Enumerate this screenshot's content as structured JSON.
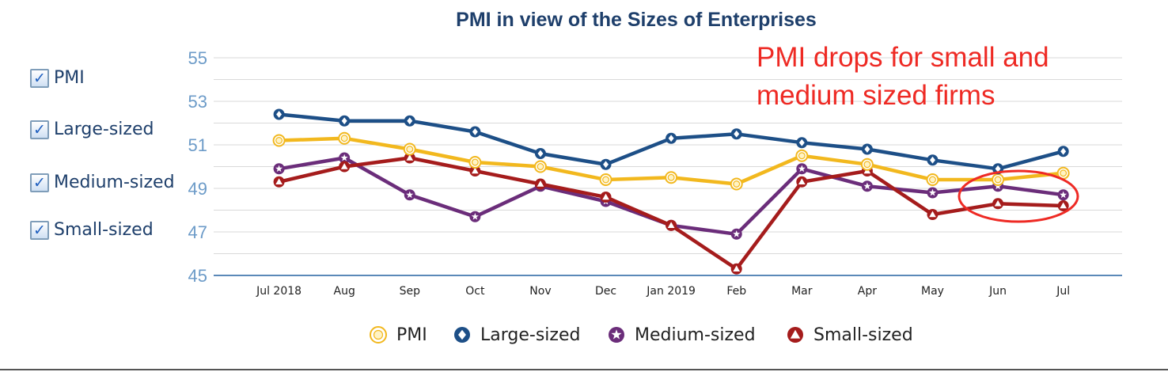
{
  "sidebar": {
    "items": [
      {
        "label": "PMI",
        "checked": true
      },
      {
        "label": "Large-sized",
        "checked": true
      },
      {
        "label": "Medium-sized",
        "checked": true
      },
      {
        "label": "Small-sized",
        "checked": true
      }
    ],
    "check_glyph": "✓"
  },
  "annotation": {
    "lines": [
      "PMI drops for small and",
      "medium sized firms"
    ],
    "color": "#ee2a24"
  },
  "chart_data": {
    "type": "line",
    "title": "PMI in view of the Sizes of Enterprises",
    "xlabel": "",
    "ylabel": "",
    "categories": [
      "Jul 2018",
      "Aug",
      "Sep",
      "Oct",
      "Nov",
      "Dec",
      "Jan 2019",
      "Feb",
      "Mar",
      "Apr",
      "May",
      "Jun",
      "Jul"
    ],
    "ylim": [
      45,
      55
    ],
    "yticks": [
      45,
      47,
      49,
      51,
      53,
      55
    ],
    "grid": true,
    "legend": "bottom",
    "series": [
      {
        "name": "PMI",
        "color": "#f2b81e",
        "marker": "circle",
        "values": [
          51.2,
          51.3,
          50.8,
          50.2,
          50.0,
          49.4,
          49.5,
          49.2,
          50.5,
          50.1,
          49.4,
          49.4,
          49.7
        ]
      },
      {
        "name": "Large-sized",
        "color": "#1d4f87",
        "marker": "diamond",
        "values": [
          52.4,
          52.1,
          52.1,
          51.6,
          50.6,
          50.1,
          51.3,
          51.5,
          51.1,
          50.8,
          50.3,
          49.9,
          50.7
        ]
      },
      {
        "name": "Medium-sized",
        "color": "#6b2d7a",
        "marker": "star",
        "values": [
          49.9,
          50.4,
          48.7,
          47.7,
          49.1,
          48.4,
          47.3,
          46.9,
          49.9,
          49.1,
          48.8,
          49.1,
          48.7
        ]
      },
      {
        "name": "Small-sized",
        "color": "#a51c1c",
        "marker": "triangle",
        "values": [
          49.3,
          50.0,
          50.4,
          49.8,
          49.2,
          48.6,
          47.3,
          45.3,
          49.3,
          49.8,
          47.8,
          48.3,
          48.2
        ]
      }
    ]
  }
}
